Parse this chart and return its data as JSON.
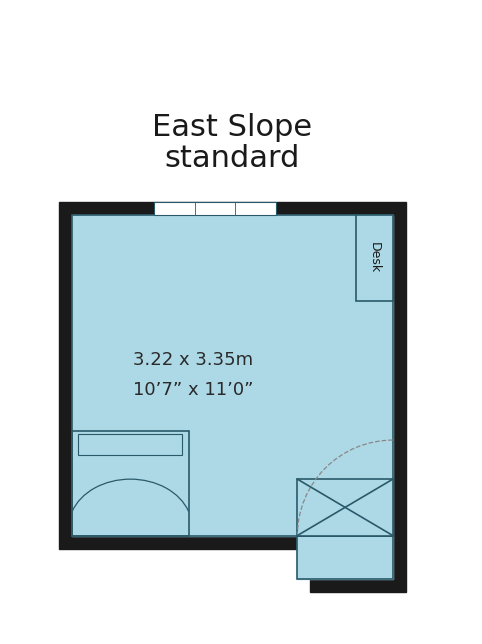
{
  "title_line1": "East Slope",
  "title_line2": "standard",
  "title_fontsize": 22,
  "dim_text1": "3.22 x 3.35m",
  "dim_text2": "10’7” x 11’0”",
  "dim_fontsize": 13,
  "room_color": "#add8e6",
  "wall_color": "#1a1a1a",
  "wall_thickness": 0.3,
  "line_color": "#2a5a6a",
  "line_width": 1.2,
  "fig_width": 4.82,
  "fig_height": 6.44,
  "bg_color": "#ffffff"
}
